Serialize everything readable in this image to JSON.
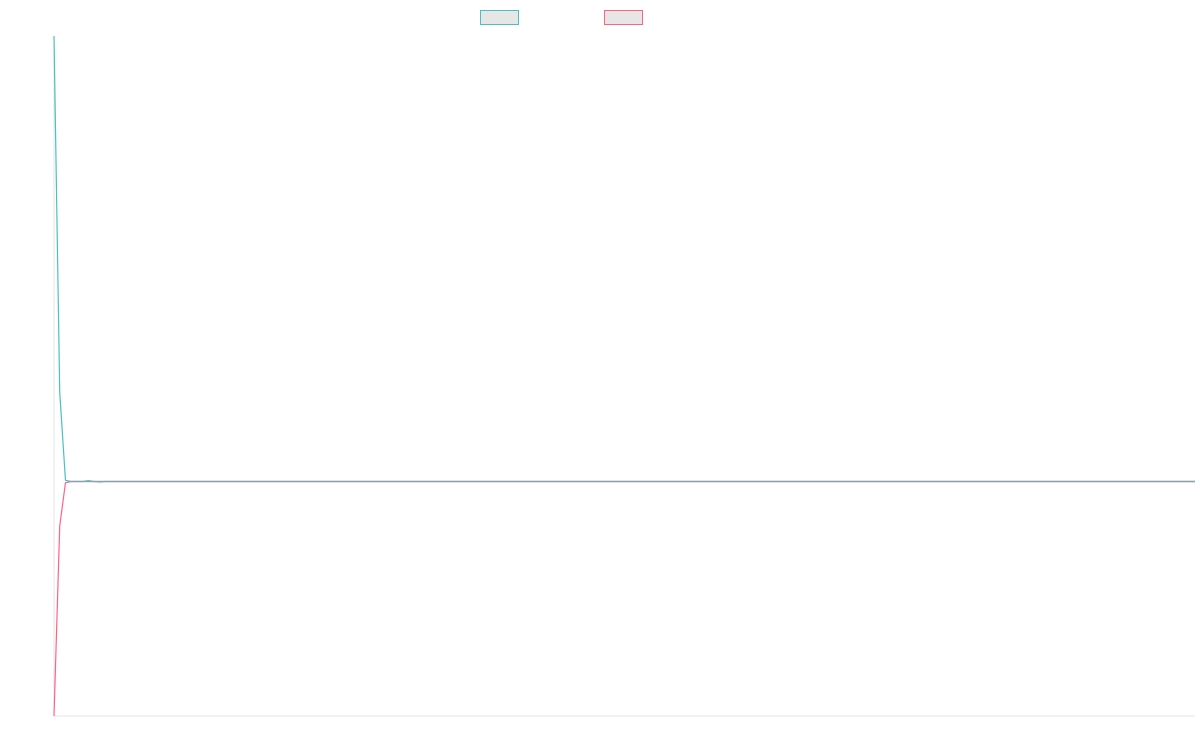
{
  "chart_data": {
    "type": "line",
    "title": "",
    "xlabel": "",
    "ylabel": "",
    "x_count": 200,
    "ylim": [
      -1,
      1.9
    ],
    "grid": false,
    "legend": "top-center",
    "series": [
      {
        "name": "",
        "color": "#4bc0c0",
        "points": [
          [
            0,
            1.9
          ],
          [
            1,
            0.38
          ],
          [
            2,
            0.005
          ],
          [
            3,
            0
          ],
          [
            4,
            0
          ],
          [
            5,
            0
          ],
          [
            6,
            0.004
          ],
          [
            7,
            0
          ],
          [
            8,
            -0.002
          ],
          [
            9,
            0
          ],
          [
            199,
            0
          ]
        ]
      },
      {
        "name": "",
        "color": "#ff6384",
        "points": [
          [
            0,
            -1.0
          ],
          [
            1,
            -0.19
          ],
          [
            2,
            -0.005
          ],
          [
            3,
            0
          ],
          [
            4,
            0
          ],
          [
            5,
            0
          ],
          [
            6,
            0
          ],
          [
            7,
            0
          ],
          [
            8,
            0
          ],
          [
            9,
            0
          ],
          [
            199,
            0
          ]
        ]
      }
    ]
  }
}
